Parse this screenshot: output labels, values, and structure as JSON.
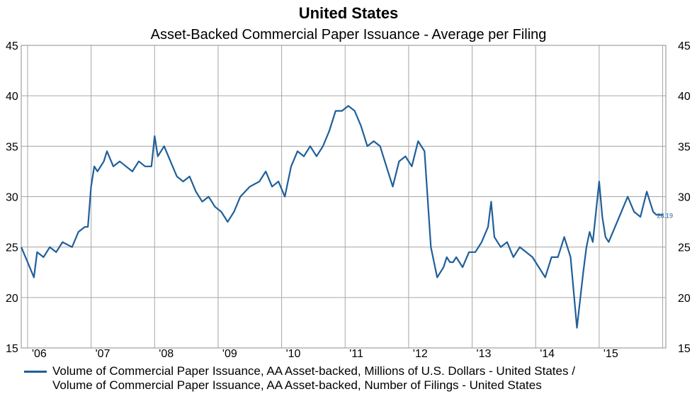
{
  "chart_data": {
    "type": "line",
    "title": "United States",
    "subtitle": "Asset-Backed Commercial Paper Issuance - Average per Filing",
    "ylim": [
      15,
      45
    ],
    "y_ticks": [
      "15",
      "20",
      "25",
      "30",
      "35",
      "40",
      "45"
    ],
    "x_ticks": [
      "'06",
      "'07",
      "'08",
      "'09",
      "'10",
      "'11",
      "'12",
      "'13",
      "'14",
      "'15"
    ],
    "xlim": [
      2005.9,
      2016.05
    ],
    "grid": true,
    "legend_position": "bottom",
    "last_value_label": "28.19",
    "series": [
      {
        "name": "Volume of Commercial Paper Issuance, AA Asset-backed, Millions of U.S. Dollars - United States /",
        "name_line2": "Volume of Commercial Paper Issuance, AA Asset-backed, Number of Filings - United States",
        "color": "#1f5f9a",
        "x": [
          2005.9,
          2006.0,
          2006.1,
          2006.15,
          2006.25,
          2006.35,
          2006.45,
          2006.55,
          2006.7,
          2006.8,
          2006.9,
          2006.95,
          2007.0,
          2007.05,
          2007.1,
          2007.2,
          2007.25,
          2007.35,
          2007.45,
          2007.55,
          2007.65,
          2007.75,
          2007.85,
          2007.95,
          2008.0,
          2008.05,
          2008.15,
          2008.25,
          2008.35,
          2008.45,
          2008.55,
          2008.65,
          2008.75,
          2008.85,
          2008.95,
          2009.05,
          2009.15,
          2009.25,
          2009.35,
          2009.5,
          2009.65,
          2009.75,
          2009.85,
          2009.95,
          2010.05,
          2010.15,
          2010.25,
          2010.35,
          2010.45,
          2010.55,
          2010.65,
          2010.75,
          2010.85,
          2010.95,
          2011.05,
          2011.15,
          2011.25,
          2011.35,
          2011.45,
          2011.55,
          2011.65,
          2011.75,
          2011.85,
          2011.95,
          2012.05,
          2012.15,
          2012.25,
          2012.35,
          2012.45,
          2012.55,
          2012.6,
          2012.65,
          2012.7,
          2012.75,
          2012.85,
          2012.95,
          2013.05,
          2013.15,
          2013.25,
          2013.3,
          2013.35,
          2013.45,
          2013.55,
          2013.65,
          2013.75,
          2013.85,
          2013.95,
          2014.05,
          2014.15,
          2014.25,
          2014.35,
          2014.45,
          2014.55,
          2014.65,
          2014.75,
          2014.8,
          2014.85,
          2014.9,
          2014.95,
          2015.0,
          2015.05,
          2015.1,
          2015.15,
          2015.25,
          2015.35,
          2015.45,
          2015.55,
          2015.65,
          2015.75,
          2015.85,
          2015.9,
          2015.95,
          2016.0
        ],
        "values": [
          25.0,
          23.5,
          22.0,
          24.5,
          24.0,
          25.0,
          24.5,
          25.5,
          25.0,
          26.5,
          27.0,
          27.0,
          31.0,
          33.0,
          32.5,
          33.5,
          34.5,
          33.0,
          33.5,
          33.0,
          32.5,
          33.5,
          33.0,
          33.0,
          36.0,
          34.0,
          35.0,
          33.5,
          32.0,
          31.5,
          32.0,
          30.5,
          29.5,
          30.0,
          29.0,
          28.5,
          27.5,
          28.5,
          30.0,
          31.0,
          31.5,
          32.5,
          31.0,
          31.5,
          30.0,
          33.0,
          34.5,
          34.0,
          35.0,
          34.0,
          35.0,
          36.5,
          38.5,
          38.5,
          39.0,
          38.5,
          37.0,
          35.0,
          35.5,
          35.0,
          33.0,
          31.0,
          33.5,
          34.0,
          33.0,
          35.5,
          34.5,
          25.0,
          22.0,
          23.0,
          24.0,
          23.5,
          23.5,
          24.0,
          23.0,
          24.5,
          24.5,
          25.5,
          27.0,
          29.5,
          26.0,
          25.0,
          25.5,
          24.0,
          25.0,
          24.5,
          24.0,
          23.0,
          22.0,
          24.0,
          24.0,
          26.0,
          24.0,
          17.0,
          22.5,
          25.0,
          26.5,
          25.5,
          28.5,
          31.5,
          28.0,
          26.0,
          25.5,
          27.0,
          28.5,
          30.0,
          28.5,
          28.0,
          30.5,
          28.5,
          28.2,
          28.19,
          28.19
        ]
      }
    ]
  }
}
